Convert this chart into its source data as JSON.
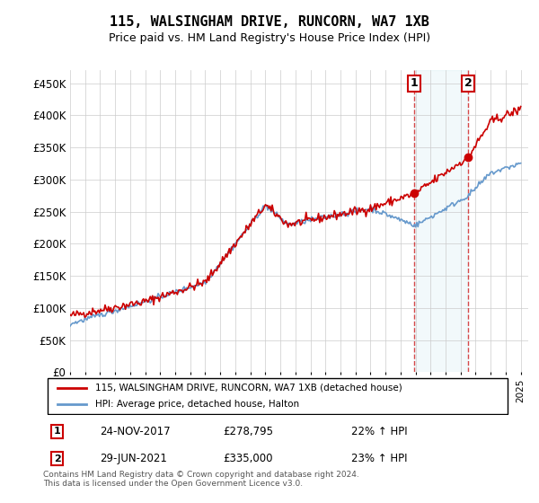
{
  "title": "115, WALSINGHAM DRIVE, RUNCORN, WA7 1XB",
  "subtitle": "Price paid vs. HM Land Registry's House Price Index (HPI)",
  "ylabel_ticks": [
    "£0",
    "£50K",
    "£100K",
    "£150K",
    "£200K",
    "£250K",
    "£300K",
    "£350K",
    "£400K",
    "£450K"
  ],
  "ytick_values": [
    0,
    50000,
    100000,
    150000,
    200000,
    250000,
    300000,
    350000,
    400000,
    450000
  ],
  "ylim": [
    0,
    470000
  ],
  "xlim_start": 1995.0,
  "xlim_end": 2025.5,
  "legend_line1": "115, WALSINGHAM DRIVE, RUNCORN, WA7 1XB (detached house)",
  "legend_line2": "HPI: Average price, detached house, Halton",
  "sale1_label": "1",
  "sale1_date": "24-NOV-2017",
  "sale1_price": "£278,795",
  "sale1_hpi": "22% ↑ HPI",
  "sale2_label": "2",
  "sale2_date": "29-JUN-2021",
  "sale2_price": "£335,000",
  "sale2_hpi": "23% ↑ HPI",
  "footer": "Contains HM Land Registry data © Crown copyright and database right 2024.\nThis data is licensed under the Open Government Licence v3.0.",
  "red_color": "#cc0000",
  "blue_color": "#6699cc",
  "sale1_x": 2017.9,
  "sale1_y": 278795,
  "sale2_x": 2021.5,
  "sale2_y": 335000
}
